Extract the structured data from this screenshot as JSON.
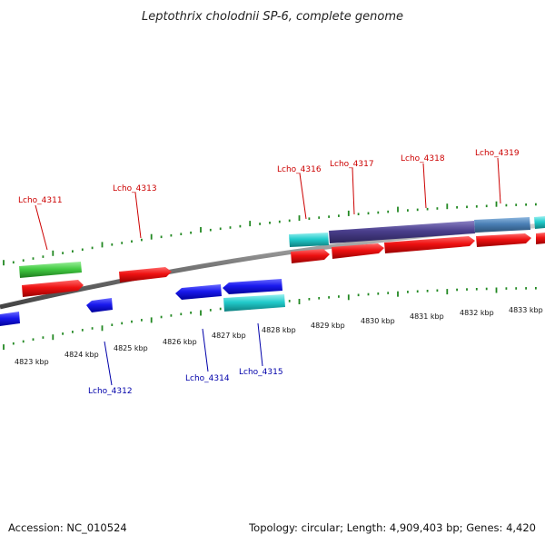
{
  "title": "Leptothrix cholodnii SP-6, complete genome",
  "footer": {
    "accession": "Accession: NC_010524",
    "summary": "Topology: circular; Length: 4,909,403 bp; Genes: 4,420"
  },
  "ticks": [
    "4823 kbp",
    "4824 kbp",
    "4825 kbp",
    "4826 kbp",
    "4827 kbp",
    "4828 kbp",
    "4829 kbp",
    "4830 kbp",
    "4831 kbp",
    "4832 kbp",
    "4833 kbp"
  ],
  "labels_forward": [
    "Lcho_4311",
    "Lcho_4313",
    "Lcho_4316",
    "Lcho_4317",
    "Lcho_4318",
    "Lcho_4319"
  ],
  "labels_reverse": [
    "Lcho_4312",
    "Lcho_4314",
    "Lcho_4315"
  ],
  "colors": {
    "cds_forward": "#ee1111",
    "cds_reverse": "#1a1aee",
    "rna_green": "#44cc44",
    "cyan_track": "#22cccc",
    "purple_track": "#4a3f8c",
    "steel_track": "#4a7fb5",
    "tick_green": "#228822",
    "backbone": "#777777",
    "label_forward": "#cc0000",
    "label_reverse": "#0000aa"
  }
}
